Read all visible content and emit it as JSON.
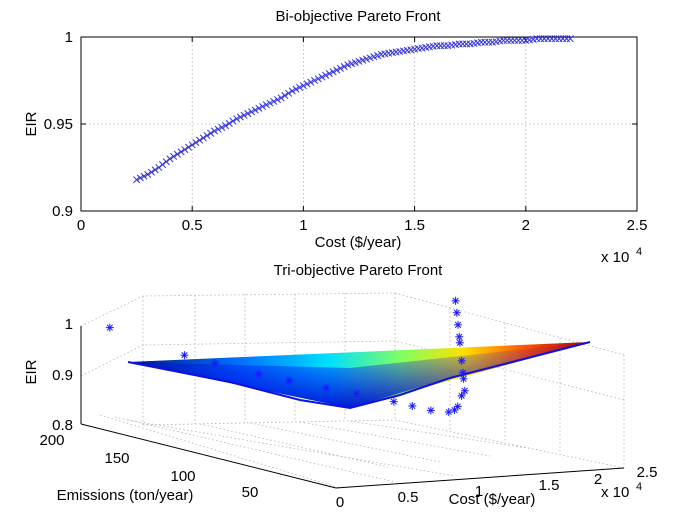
{
  "chart_data": [
    {
      "type": "scatter",
      "title": "Bi-objective Pareto Front",
      "xlabel": "Cost ($/year)",
      "ylabel": "EIR",
      "x_exponent": "x 10^4",
      "xlim": [
        0,
        25000
      ],
      "ylim": [
        0.9,
        1.0
      ],
      "xticks": [
        "0",
        "0.5",
        "1",
        "1.5",
        "2",
        "2.5"
      ],
      "yticks": [
        "0.9",
        "0.95",
        "1"
      ],
      "grid": true,
      "marker": "x",
      "marker_color": "#3333dd",
      "series": [
        {
          "x": [
            2500,
            3000,
            3500,
            4000,
            4500,
            5000,
            5500,
            6000,
            6500,
            7000,
            7500,
            8000,
            8500,
            9000,
            9500,
            10000,
            10500,
            11000,
            11500,
            12000,
            12500,
            13000,
            13500,
            14000,
            14500,
            15000,
            15500,
            16000,
            16500,
            17000,
            17500,
            18000,
            18500,
            19000,
            19500,
            20000,
            20500,
            21000,
            21500,
            22000
          ],
          "y": [
            0.918,
            0.921,
            0.925,
            0.93,
            0.934,
            0.938,
            0.942,
            0.946,
            0.949,
            0.953,
            0.956,
            0.959,
            0.962,
            0.965,
            0.969,
            0.972,
            0.975,
            0.978,
            0.981,
            0.984,
            0.986,
            0.988,
            0.99,
            0.991,
            0.992,
            0.993,
            0.994,
            0.995,
            0.995,
            0.996,
            0.996,
            0.997,
            0.997,
            0.998,
            0.998,
            0.998,
            0.999,
            0.999,
            0.999,
            0.999
          ]
        }
      ]
    },
    {
      "type": "scatter3d",
      "title": "Tri-objective Pareto Front",
      "xlabel": "Cost ($/year)",
      "ylabel": "Emissions (ton/year)",
      "zlabel": "EIR",
      "x_exponent": "x 10^4",
      "xlim": [
        0,
        25000
      ],
      "ylim": [
        0,
        200
      ],
      "zlim": [
        0.8,
        1.0
      ],
      "xticks": [
        "0",
        "0.5",
        "1",
        "1.5",
        "2",
        "2.5"
      ],
      "yticks": [
        "50",
        "100",
        "150",
        "200"
      ],
      "zticks": [
        "0.8",
        "0.9",
        "1"
      ],
      "grid": true,
      "marker": "*",
      "colormap": "jet",
      "series": [
        {
          "x": [
            2500,
            4000,
            6000,
            8000,
            10000,
            11000,
            12000,
            13000,
            14000,
            15500,
            17000,
            18500,
            20000,
            21000,
            22000,
            5000,
            7000,
            9000,
            10500,
            12500,
            14500,
            16000,
            19000
          ],
          "y": [
            200,
            155,
            115,
            80,
            45,
            25,
            20,
            22,
            28,
            40,
            55,
            70,
            85,
            95,
            105,
            140,
            100,
            65,
            35,
            20,
            30,
            45,
            75
          ],
          "z": [
            0.918,
            0.9,
            0.89,
            0.885,
            0.88,
            0.876,
            0.875,
            0.88,
            0.89,
            0.905,
            0.92,
            0.935,
            0.95,
            0.96,
            0.97,
            0.895,
            0.887,
            0.883,
            0.878,
            0.877,
            0.895,
            0.91,
            0.94
          ]
        }
      ]
    }
  ]
}
